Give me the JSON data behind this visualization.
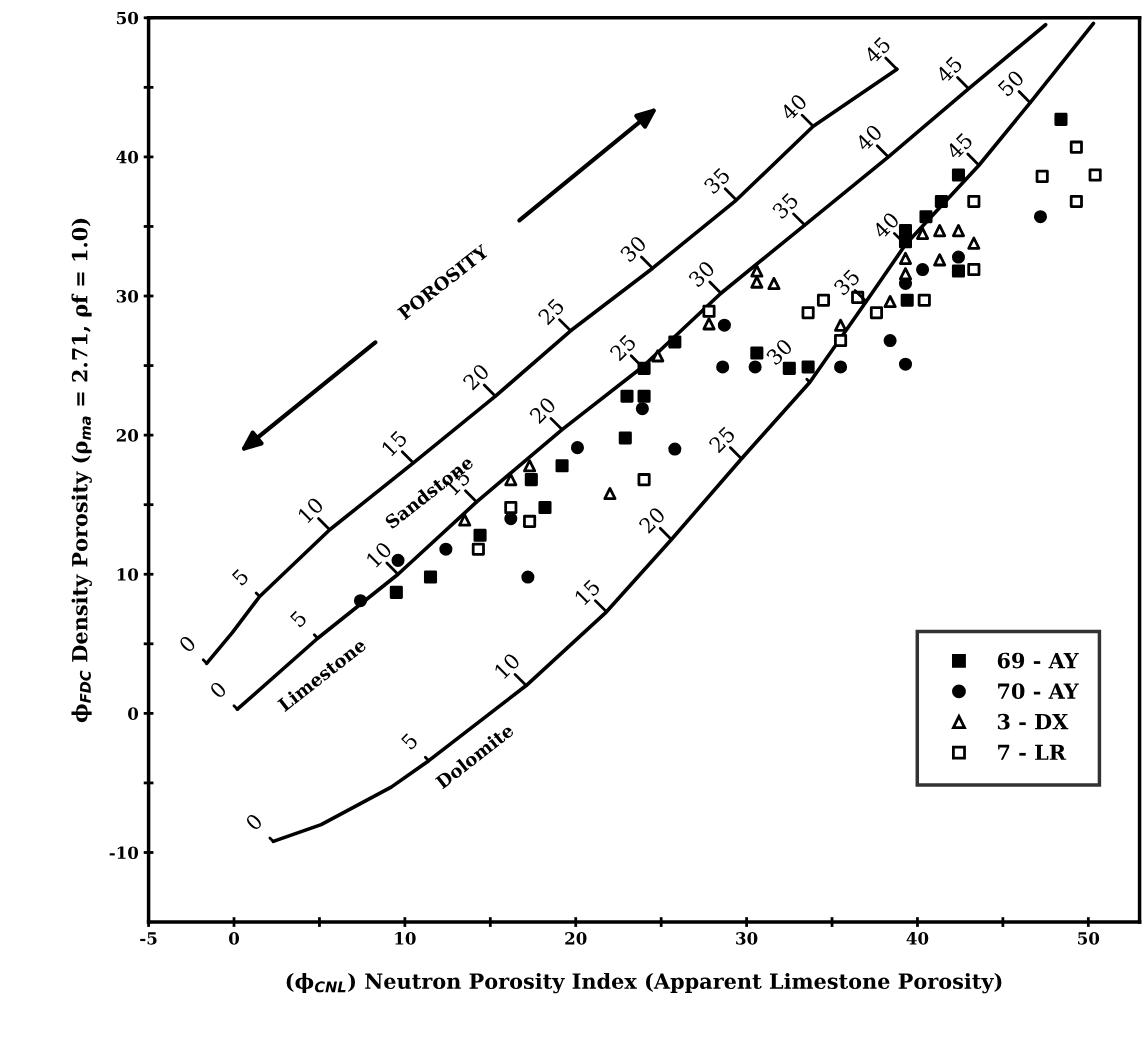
{
  "chart_data": {
    "type": "scatter",
    "xlabel": "(ϕ$_{CNL}$) Neutron Porosity Index (Apparent Limestone Porosity)",
    "ylabel": "ϕ$_{FDC}$ Density Porosity (ρ$_{ma}$ = 2.71, ρf = 1.0)",
    "xlim": [
      -5,
      53
    ],
    "ylim": [
      -15,
      50
    ],
    "xticks": [
      -5,
      0,
      {
        "value": 5,
        "label": null
      },
      10,
      {
        "value": 15,
        "label": null
      },
      20,
      {
        "value": 25,
        "label": null
      },
      30,
      {
        "value": 35,
        "label": null
      },
      40,
      {
        "value": 45,
        "label": null
      },
      50
    ],
    "yticks": [
      -10,
      {
        "value": -5,
        "label": null
      },
      0,
      {
        "value": 5,
        "label": null
      },
      10,
      {
        "value": 15,
        "label": null
      },
      20,
      {
        "value": 25,
        "label": null
      },
      30,
      {
        "value": 35,
        "label": null
      },
      40,
      {
        "value": 45,
        "label": null
      },
      50
    ],
    "grid": false,
    "legend": "bottom right",
    "series": [
      {
        "type": "line",
        "color": "#000000",
        "marker": "none",
        "line_style": "solid",
        "x": [
          -1.6,
          -0.1,
          1.5,
          5.6,
          10.5,
          15.3,
          19.7,
          24.5,
          29.4,
          33.9,
          38.8
        ],
        "values": [
          3.6,
          5.8,
          8.4,
          13.2,
          18.0,
          22.8,
          27.5,
          32.0,
          36.9,
          42.2,
          46.3
        ]
      },
      {
        "type": "line",
        "color": "#000000",
        "marker": "none",
        "line_style": "solid",
        "x": [
          0.2,
          4.9,
          9.6,
          14.2,
          19.2,
          23.9,
          28.5,
          33.4,
          38.3,
          43.0,
          47.5
        ],
        "values": [
          0.3,
          5.4,
          10.0,
          15.2,
          20.4,
          24.9,
          30.2,
          35.1,
          40.0,
          44.9,
          49.5
        ]
      },
      {
        "type": "line",
        "color": "#000000",
        "marker": "none",
        "line_style": "solid",
        "x": [
          2.3,
          5.1,
          9.2,
          11.4,
          17.1,
          21.8,
          25.6,
          29.7,
          33.7,
          37.0,
          39.3,
          43.6,
          46.6,
          50.3
        ],
        "values": [
          -9.2,
          -8.0,
          -5.3,
          -3.4,
          2.0,
          7.3,
          12.5,
          18.3,
          23.8,
          29.6,
          33.7,
          39.4,
          43.9,
          49.6
        ]
      },
      {
        "name": "69 - AY",
        "color": "#000000",
        "marker": "square",
        "x": [
          9.5,
          11.5,
          14.4,
          17.4,
          18.2,
          19.2,
          22.9,
          23.0,
          24.0,
          24.0,
          25.8,
          30.6,
          32.5,
          33.6,
          39.4,
          39.3,
          39.3,
          40.5,
          41.4,
          42.4,
          42.4,
          48.4
        ],
        "values": [
          8.7,
          9.8,
          12.8,
          16.8,
          14.8,
          17.8,
          19.8,
          22.8,
          22.8,
          24.8,
          26.7,
          25.9,
          24.8,
          24.9,
          29.7,
          33.9,
          34.7,
          35.7,
          36.8,
          38.7,
          31.8,
          42.7
        ]
      },
      {
        "name": "70 - AY",
        "color": "#000000",
        "marker": "circle",
        "x": [
          7.4,
          9.6,
          12.4,
          16.2,
          17.2,
          20.1,
          23.9,
          25.8,
          28.7,
          28.6,
          30.5,
          35.5,
          38.4,
          39.3,
          39.3,
          40.3,
          42.4,
          47.2
        ],
        "values": [
          8.1,
          11.0,
          11.8,
          14.0,
          9.8,
          19.1,
          21.9,
          19.0,
          27.9,
          24.9,
          24.9,
          24.9,
          26.8,
          25.1,
          30.9,
          31.9,
          32.8,
          35.7
        ]
      },
      {
        "name": "3 - DX",
        "color": "#000000",
        "marker": "triangle-open",
        "x": [
          13.5,
          16.2,
          17.3,
          22.0,
          24.8,
          27.8,
          30.6,
          30.6,
          31.6,
          35.5,
          38.4,
          39.3,
          39.3,
          40.3,
          41.3,
          41.3,
          42.4,
          43.3
        ],
        "values": [
          13.9,
          16.8,
          17.8,
          15.8,
          25.7,
          28.0,
          31.8,
          31.0,
          30.9,
          27.9,
          29.6,
          31.6,
          32.7,
          34.5,
          34.7,
          32.6,
          34.7,
          33.8
        ]
      },
      {
        "name": "7 - LR",
        "color": "#000000",
        "marker": "square-open",
        "x": [
          14.3,
          16.2,
          17.3,
          24.0,
          27.8,
          33.6,
          34.5,
          35.5,
          36.5,
          37.6,
          40.4,
          43.3,
          43.3,
          47.3,
          49.3,
          50.4,
          49.3
        ],
        "values": [
          11.8,
          14.8,
          13.8,
          16.8,
          28.9,
          28.8,
          29.7,
          26.8,
          29.9,
          28.8,
          29.7,
          31.9,
          36.8,
          38.6,
          40.7,
          38.7,
          36.8
        ]
      }
    ],
    "annotations": [
      {
        "text": "0",
        "x": -1.6,
        "y": 3.6
      },
      {
        "text": "5",
        "x": 1.5,
        "y": 8.4
      },
      {
        "text": "10",
        "x": 5.6,
        "y": 13.2
      },
      {
        "text": "15",
        "x": 10.5,
        "y": 18.0
      },
      {
        "text": "20",
        "x": 15.3,
        "y": 22.8
      },
      {
        "text": "25",
        "x": 19.7,
        "y": 27.5
      },
      {
        "text": "30",
        "x": 24.5,
        "y": 32.0
      },
      {
        "text": "35",
        "x": 29.4,
        "y": 36.9
      },
      {
        "text": "40",
        "x": 33.9,
        "y": 42.2
      },
      {
        "text": "45",
        "x": 38.8,
        "y": 46.3
      },
      {
        "text": "0",
        "x": 0.2,
        "y": 0.3
      },
      {
        "text": "5",
        "x": 4.9,
        "y": 5.4
      },
      {
        "text": "10",
        "x": 9.6,
        "y": 10.0
      },
      {
        "text": "15",
        "x": 14.2,
        "y": 15.2
      },
      {
        "text": "20",
        "x": 19.2,
        "y": 20.4
      },
      {
        "text": "25",
        "x": 23.9,
        "y": 24.9
      },
      {
        "text": "30",
        "x": 28.5,
        "y": 30.2
      },
      {
        "text": "35",
        "x": 33.4,
        "y": 35.1
      },
      {
        "text": "40",
        "x": 38.3,
        "y": 40.0
      },
      {
        "text": "45",
        "x": 43.0,
        "y": 44.9
      },
      {
        "text": "0",
        "x": 2.3,
        "y": -9.2
      },
      {
        "text": "5",
        "x": 11.4,
        "y": -3.4
      },
      {
        "text": "10",
        "x": 17.1,
        "y": 2.0
      },
      {
        "text": "15",
        "x": 21.8,
        "y": 7.3
      },
      {
        "text": "20",
        "x": 25.6,
        "y": 12.5
      },
      {
        "text": "25",
        "x": 29.7,
        "y": 18.3
      },
      {
        "text": "30",
        "x": 33.7,
        "y": 23.8
      },
      {
        "text": "35",
        "x": 37.0,
        "y": 29.6
      },
      {
        "text": "40",
        "x": 39.3,
        "y": 33.7
      },
      {
        "text": "45",
        "x": 43.6,
        "y": 39.4
      },
      {
        "text": "50",
        "x": 46.6,
        "y": 43.9
      },
      "Sandstone",
      "Limestone",
      "Dolomite",
      "POROSITY"
    ]
  }
}
